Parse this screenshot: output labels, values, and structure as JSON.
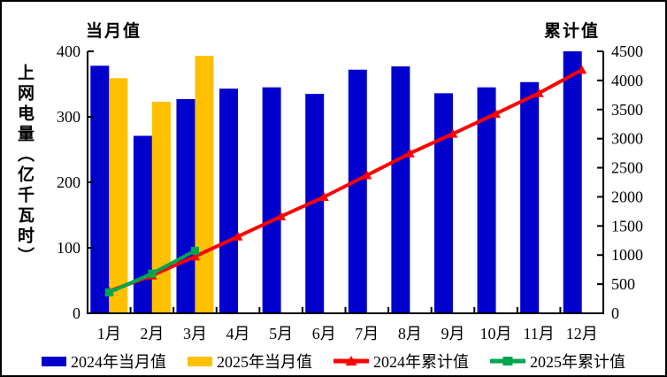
{
  "chart": {
    "left_axis_title": "当月值",
    "right_axis_title": "累计值",
    "y_axis_label": "上网电量（亿千瓦时）"
  },
  "chart_data": {
    "type": "bar",
    "subtype": "combo bar+line, dual axis",
    "categories": [
      "1月",
      "2月",
      "3月",
      "4月",
      "5月",
      "6月",
      "7月",
      "8月",
      "9月",
      "10月",
      "11月",
      "12月"
    ],
    "series": [
      {
        "name": "2024年当月值",
        "type": "bar",
        "axis": "left",
        "color": "#0000CC",
        "marker": "none",
        "values": [
          378,
          271,
          327,
          343,
          345,
          335,
          372,
          377,
          336,
          345,
          353,
          400
        ]
      },
      {
        "name": "2025年当月值",
        "type": "bar",
        "axis": "left",
        "color": "#FFC000",
        "marker": "none",
        "values": [
          359,
          323,
          393
        ]
      },
      {
        "name": "2024年累计值",
        "type": "line",
        "axis": "right",
        "color": "#FF0000",
        "marker": "triangle",
        "values": [
          378,
          649,
          976,
          1319,
          1664,
          1999,
          2371,
          2748,
          3084,
          3429,
          3782,
          4182
        ]
      },
      {
        "name": "2025年累计值",
        "type": "line",
        "axis": "right",
        "color": "#00A550",
        "marker": "square",
        "values": [
          359,
          682,
          1075
        ]
      }
    ],
    "left_axis": {
      "min": 0,
      "max": 400,
      "step": 100,
      "ticks": [
        "0",
        "100",
        "200",
        "300",
        "400"
      ]
    },
    "right_axis": {
      "min": 0,
      "max": 4500,
      "step": 500,
      "ticks": [
        "0",
        "500",
        "1000",
        "1500",
        "2000",
        "2500",
        "3000",
        "3500",
        "4000",
        "4500"
      ]
    },
    "grid": "off",
    "legend_position": "bottom",
    "title": "",
    "xlabel": "",
    "ylabel": "上网电量（亿千瓦时）"
  },
  "legend": {
    "items": [
      "2024年当月值",
      "2025年当月值",
      "2024年累计值",
      "2025年累计值"
    ]
  },
  "colors": {
    "bar_2024": "#0000CC",
    "bar_2025": "#FFC000",
    "line_2024": "#FF0000",
    "line_2025": "#00A550",
    "axis": "#000000",
    "text": "#000000",
    "background": "#FFFFFF"
  }
}
